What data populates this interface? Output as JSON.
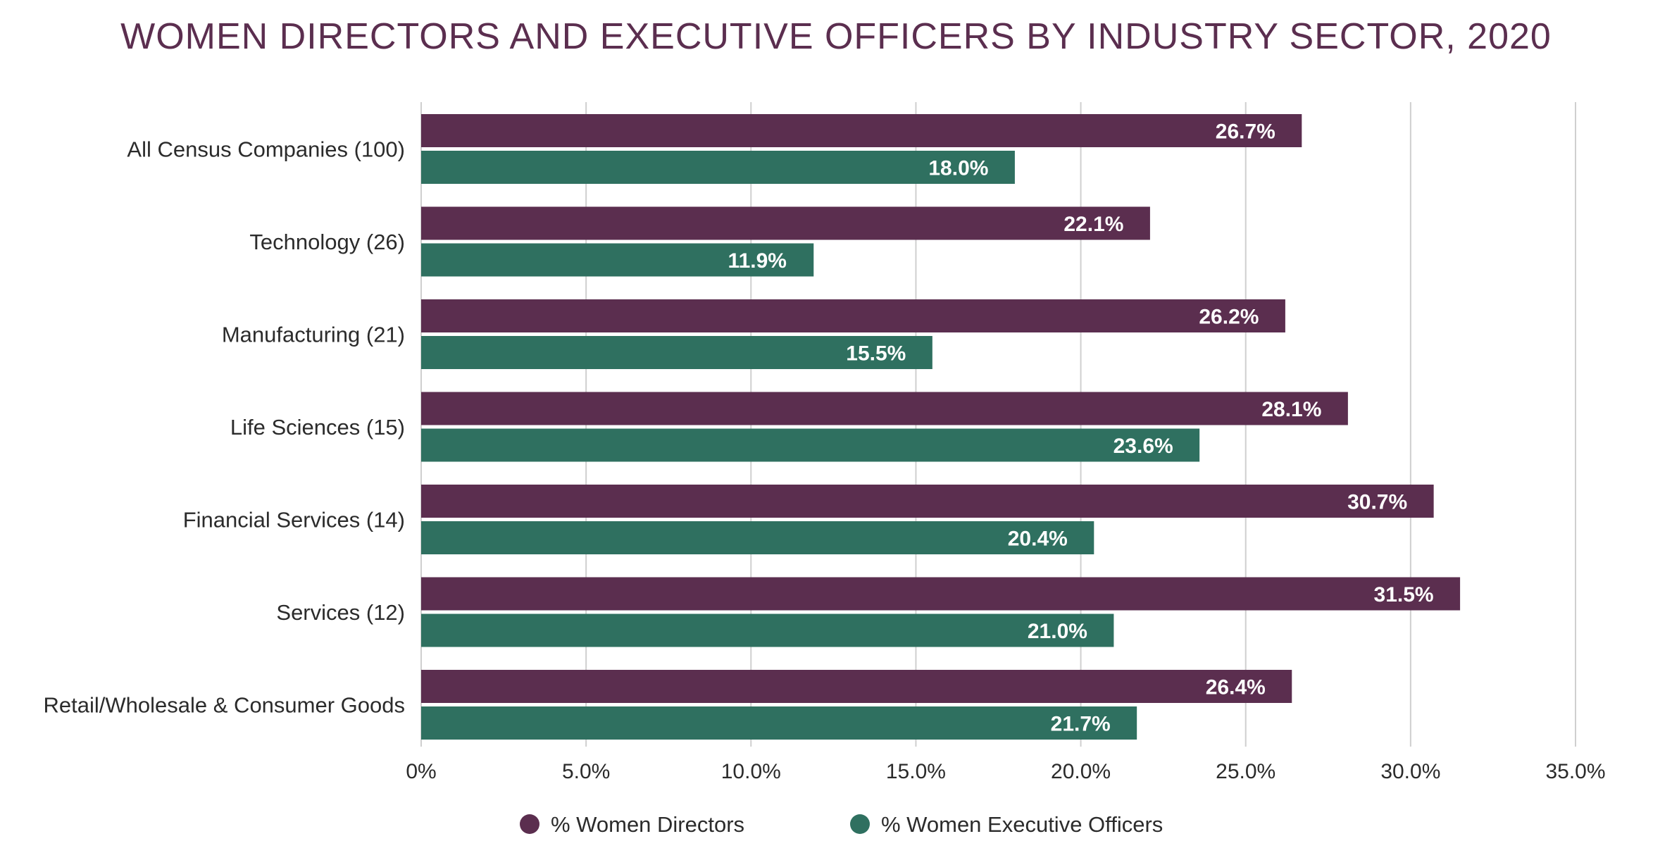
{
  "chart_data": {
    "type": "bar",
    "orientation": "horizontal",
    "title": "WOMEN DIRECTORS AND EXECUTIVE OFFICERS BY INDUSTRY SECTOR, 2020",
    "categories": [
      "All Census Companies (100)",
      "Technology (26)",
      "Manufacturing (21)",
      "Life Sciences (15)",
      "Financial Services (14)",
      "Services (12)",
      "Retail/Wholesale & Consumer Goods"
    ],
    "series": [
      {
        "name": "% Women Directors",
        "color": "#5b2e4f",
        "values": [
          26.7,
          22.1,
          26.2,
          28.1,
          30.7,
          31.5,
          26.4
        ],
        "labels": [
          "26.7%",
          "22.1%",
          "26.2%",
          "28.1%",
          "30.7%",
          "31.5%",
          "26.4%"
        ]
      },
      {
        "name": "% Women Executive Officers",
        "color": "#2f7060",
        "values": [
          18.0,
          11.9,
          15.5,
          23.6,
          20.4,
          21.0,
          21.7
        ],
        "labels": [
          "18.0%",
          "11.9%",
          "15.5%",
          "23.6%",
          "20.4%",
          "21.0%",
          "21.7%"
        ]
      }
    ],
    "xlim": [
      0,
      35
    ],
    "ticks": [
      0,
      5,
      10,
      15,
      20,
      25,
      30,
      35
    ],
    "tick_labels": [
      "0%",
      "5.0%",
      "10.0%",
      "15.0%",
      "20.0%",
      "25.0%",
      "30.0%",
      "35.0%"
    ],
    "xlabel": "",
    "ylabel": "",
    "grid": true,
    "legend_position": "bottom-center"
  }
}
